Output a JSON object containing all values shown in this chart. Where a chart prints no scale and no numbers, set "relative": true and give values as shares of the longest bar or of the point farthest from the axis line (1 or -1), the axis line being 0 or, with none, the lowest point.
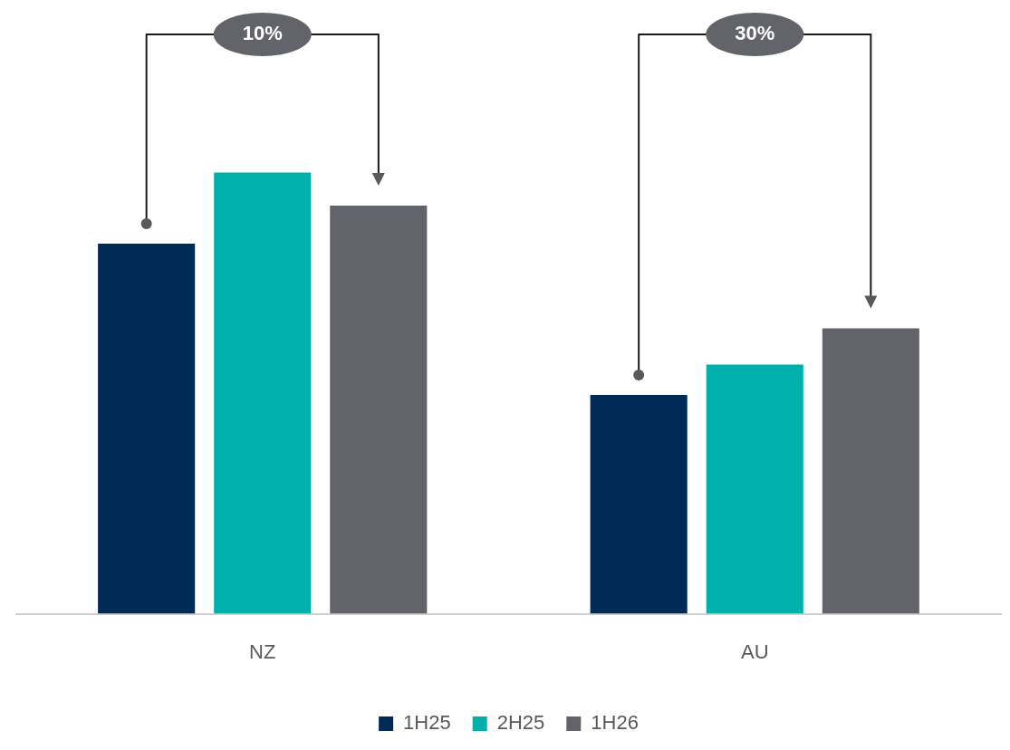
{
  "chart_data": {
    "type": "bar",
    "relative": true,
    "categories": [
      "NZ",
      "AU"
    ],
    "series": [
      {
        "name": "1H25",
        "color": "#012a56",
        "values": [
          0.839,
          0.496
        ]
      },
      {
        "name": "2H25",
        "color": "#00b0aa",
        "values": [
          1,
          0.565
        ]
      },
      {
        "name": "1H26",
        "color": "#636469",
        "values": [
          0.925,
          0.647
        ]
      }
    ],
    "annotations": [
      "10%",
      "30%"
    ],
    "legend": "bottom",
    "grid": false
  }
}
